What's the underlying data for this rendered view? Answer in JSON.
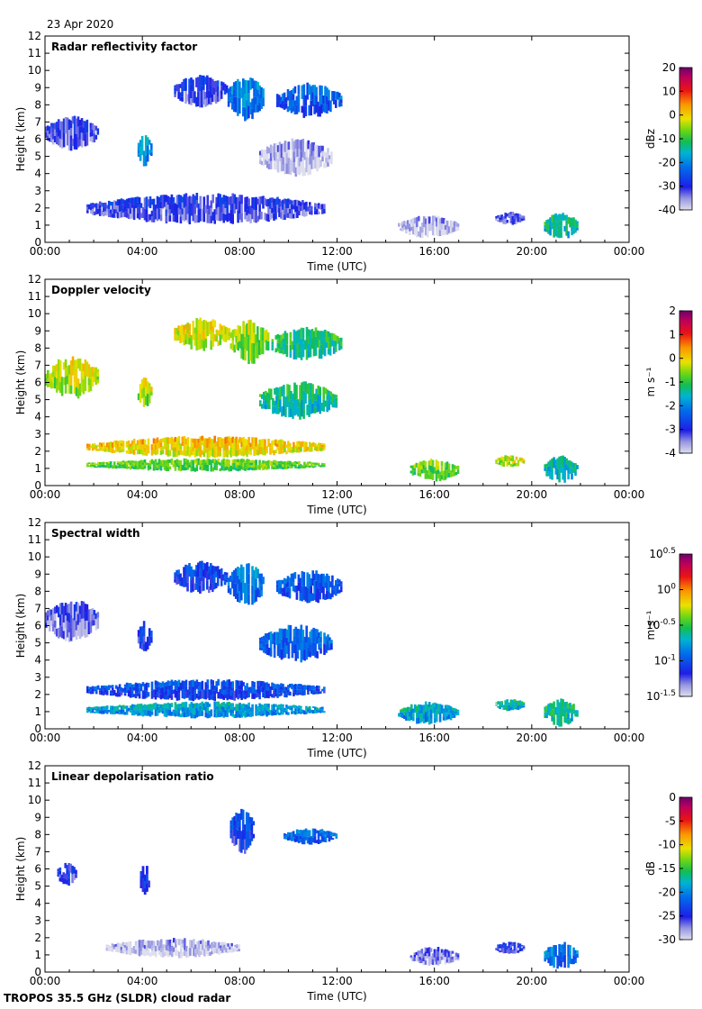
{
  "date": "23 Apr 2020",
  "footer": "TROPOS 35.5 GHz (SLDR) cloud radar",
  "chart_data": [
    {
      "type": "heatmap",
      "title": "Radar reflectivity factor",
      "xlabel": "Time (UTC)",
      "ylabel": "Height (km)",
      "xticks": [
        "00:00",
        "04:00",
        "08:00",
        "12:00",
        "16:00",
        "20:00",
        "00:00"
      ],
      "xlim": [
        0,
        24
      ],
      "ylim": [
        0,
        12
      ],
      "yticks": [
        "0",
        "1",
        "2",
        "3",
        "4",
        "5",
        "6",
        "7",
        "8",
        "9",
        "10",
        "11",
        "12"
      ],
      "colorbar": {
        "label": "dBz",
        "ticks": [
          "20",
          "10",
          "0",
          "-10",
          "-20",
          "-30",
          "-40"
        ],
        "range": [
          -40,
          20
        ],
        "scheme": "main"
      },
      "features": [
        {
          "t": [
            0.0,
            2.2
          ],
          "h": [
            5.3,
            7.4
          ],
          "level": 0.15
        },
        {
          "t": [
            3.8,
            4.4
          ],
          "h": [
            4.4,
            6.3
          ],
          "level": 0.35
        },
        {
          "t": [
            5.3,
            7.5
          ],
          "h": [
            7.8,
            9.8
          ],
          "level": 0.18
        },
        {
          "t": [
            7.5,
            9.0
          ],
          "h": [
            7.0,
            9.8
          ],
          "level": 0.32
        },
        {
          "t": [
            9.5,
            12.2
          ],
          "h": [
            7.2,
            9.3
          ],
          "level": 0.28
        },
        {
          "t": [
            8.8,
            11.8
          ],
          "h": [
            3.8,
            6.1
          ],
          "level": 0.05
        },
        {
          "t": [
            1.7,
            11.5
          ],
          "h": [
            1.0,
            2.9
          ],
          "level": 0.16
        },
        {
          "t": [
            14.5,
            17.0
          ],
          "h": [
            0.2,
            1.6
          ],
          "level": 0.05
        },
        {
          "t": [
            18.5,
            19.7
          ],
          "h": [
            1.0,
            1.8
          ],
          "level": 0.15
        },
        {
          "t": [
            20.5,
            21.9
          ],
          "h": [
            0.1,
            1.8
          ],
          "level": 0.45
        }
      ]
    },
    {
      "type": "heatmap",
      "title": "Doppler velocity",
      "xlabel": "Time (UTC)",
      "ylabel": "Height (km)",
      "xticks": [
        "00:00",
        "04:00",
        "08:00",
        "12:00",
        "16:00",
        "20:00",
        "00:00"
      ],
      "xlim": [
        0,
        24
      ],
      "ylim": [
        0,
        12
      ],
      "yticks": [
        "0",
        "1",
        "2",
        "3",
        "4",
        "5",
        "6",
        "7",
        "8",
        "9",
        "10",
        "11",
        "12"
      ],
      "colorbar": {
        "label": "m s⁻¹",
        "ticks": [
          "2",
          "1",
          "0",
          "-1",
          "-2",
          "-3",
          "-4"
        ],
        "range": [
          -4,
          2
        ],
        "scheme": "main"
      },
      "features": [
        {
          "t": [
            0.0,
            2.2
          ],
          "h": [
            5.0,
            7.6
          ],
          "level": 0.62
        },
        {
          "t": [
            3.8,
            4.4
          ],
          "h": [
            4.4,
            6.3
          ],
          "level": 0.6
        },
        {
          "t": [
            5.3,
            7.6
          ],
          "h": [
            7.8,
            9.8
          ],
          "level": 0.64
        },
        {
          "t": [
            7.6,
            9.2
          ],
          "h": [
            7.0,
            9.8
          ],
          "level": 0.58
        },
        {
          "t": [
            9.3,
            12.2
          ],
          "h": [
            7.2,
            9.3
          ],
          "level": 0.48
        },
        {
          "t": [
            8.8,
            12.0
          ],
          "h": [
            3.8,
            6.1
          ],
          "level": 0.45
        },
        {
          "t": [
            1.7,
            11.5
          ],
          "h": [
            1.6,
            2.9
          ],
          "level": 0.68
        },
        {
          "t": [
            1.7,
            11.5
          ],
          "h": [
            0.8,
            1.6
          ],
          "level": 0.55
        },
        {
          "t": [
            15.0,
            17.0
          ],
          "h": [
            0.2,
            1.6
          ],
          "level": 0.55
        },
        {
          "t": [
            18.5,
            19.7
          ],
          "h": [
            1.0,
            1.8
          ],
          "level": 0.62
        },
        {
          "t": [
            20.5,
            21.9
          ],
          "h": [
            0.1,
            1.8
          ],
          "level": 0.42
        }
      ]
    },
    {
      "type": "heatmap",
      "title": "Spectral width",
      "xlabel": "Time (UTC)",
      "ylabel": "Height (km)",
      "xticks": [
        "00:00",
        "04:00",
        "08:00",
        "12:00",
        "16:00",
        "20:00",
        "00:00"
      ],
      "xlim": [
        0,
        24
      ],
      "ylim": [
        0,
        12
      ],
      "yticks": [
        "0",
        "1",
        "2",
        "3",
        "4",
        "5",
        "6",
        "7",
        "8",
        "9",
        "10",
        "11",
        "12"
      ],
      "colorbar": {
        "label": "m s⁻¹",
        "ticks": [
          "10^0.5",
          "10^0",
          "10^-0.5",
          "10^-1",
          "10^-1.5"
        ],
        "range": [
          -1.5,
          0.5
        ],
        "scheme": "main"
      },
      "features": [
        {
          "t": [
            0.0,
            2.2
          ],
          "h": [
            5.0,
            7.6
          ],
          "level": 0.12
        },
        {
          "t": [
            3.8,
            4.4
          ],
          "h": [
            4.4,
            6.3
          ],
          "level": 0.2
        },
        {
          "t": [
            5.3,
            7.5
          ],
          "h": [
            7.8,
            9.8
          ],
          "level": 0.22
        },
        {
          "t": [
            7.5,
            9.0
          ],
          "h": [
            7.0,
            9.8
          ],
          "level": 0.32
        },
        {
          "t": [
            9.5,
            12.2
          ],
          "h": [
            7.2,
            9.3
          ],
          "level": 0.26
        },
        {
          "t": [
            8.8,
            11.8
          ],
          "h": [
            3.8,
            6.1
          ],
          "level": 0.28
        },
        {
          "t": [
            1.7,
            11.5
          ],
          "h": [
            1.6,
            2.9
          ],
          "level": 0.24
        },
        {
          "t": [
            1.7,
            11.5
          ],
          "h": [
            0.6,
            1.6
          ],
          "level": 0.38
        },
        {
          "t": [
            14.5,
            17.0
          ],
          "h": [
            0.2,
            1.6
          ],
          "level": 0.4
        },
        {
          "t": [
            18.5,
            19.7
          ],
          "h": [
            1.0,
            1.8
          ],
          "level": 0.42
        },
        {
          "t": [
            20.5,
            21.9
          ],
          "h": [
            0.1,
            1.8
          ],
          "level": 0.45
        }
      ]
    },
    {
      "type": "heatmap",
      "title": "Linear depolarisation ratio",
      "xlabel": "Time (UTC)",
      "ylabel": "Height (km)",
      "xticks": [
        "00:00",
        "04:00",
        "08:00",
        "12:00",
        "16:00",
        "20:00",
        "00:00"
      ],
      "xlim": [
        0,
        24
      ],
      "ylim": [
        0,
        12
      ],
      "yticks": [
        "0",
        "1",
        "2",
        "3",
        "4",
        "5",
        "6",
        "7",
        "8",
        "9",
        "10",
        "11",
        "12"
      ],
      "colorbar": {
        "label": "dB",
        "ticks": [
          "0",
          "-5",
          "-10",
          "-15",
          "-20",
          "-25",
          "-30"
        ],
        "range": [
          -30,
          0
        ],
        "scheme": "main"
      },
      "features": [
        {
          "t": [
            0.5,
            1.3
          ],
          "h": [
            5.0,
            6.4
          ],
          "level": 0.18
        },
        {
          "t": [
            3.9,
            4.3
          ],
          "h": [
            4.4,
            6.3
          ],
          "level": 0.2
        },
        {
          "t": [
            7.6,
            8.6
          ],
          "h": [
            6.8,
            9.7
          ],
          "level": 0.22
        },
        {
          "t": [
            9.8,
            12.0
          ],
          "h": [
            7.4,
            8.4
          ],
          "level": 0.3
        },
        {
          "t": [
            2.5,
            8.0
          ],
          "h": [
            0.8,
            2.0
          ],
          "level": 0.05
        },
        {
          "t": [
            15.0,
            17.0
          ],
          "h": [
            0.3,
            1.5
          ],
          "level": 0.1
        },
        {
          "t": [
            18.5,
            19.7
          ],
          "h": [
            1.0,
            1.8
          ],
          "level": 0.18
        },
        {
          "t": [
            20.5,
            21.9
          ],
          "h": [
            0.1,
            1.8
          ],
          "level": 0.32
        }
      ]
    }
  ]
}
